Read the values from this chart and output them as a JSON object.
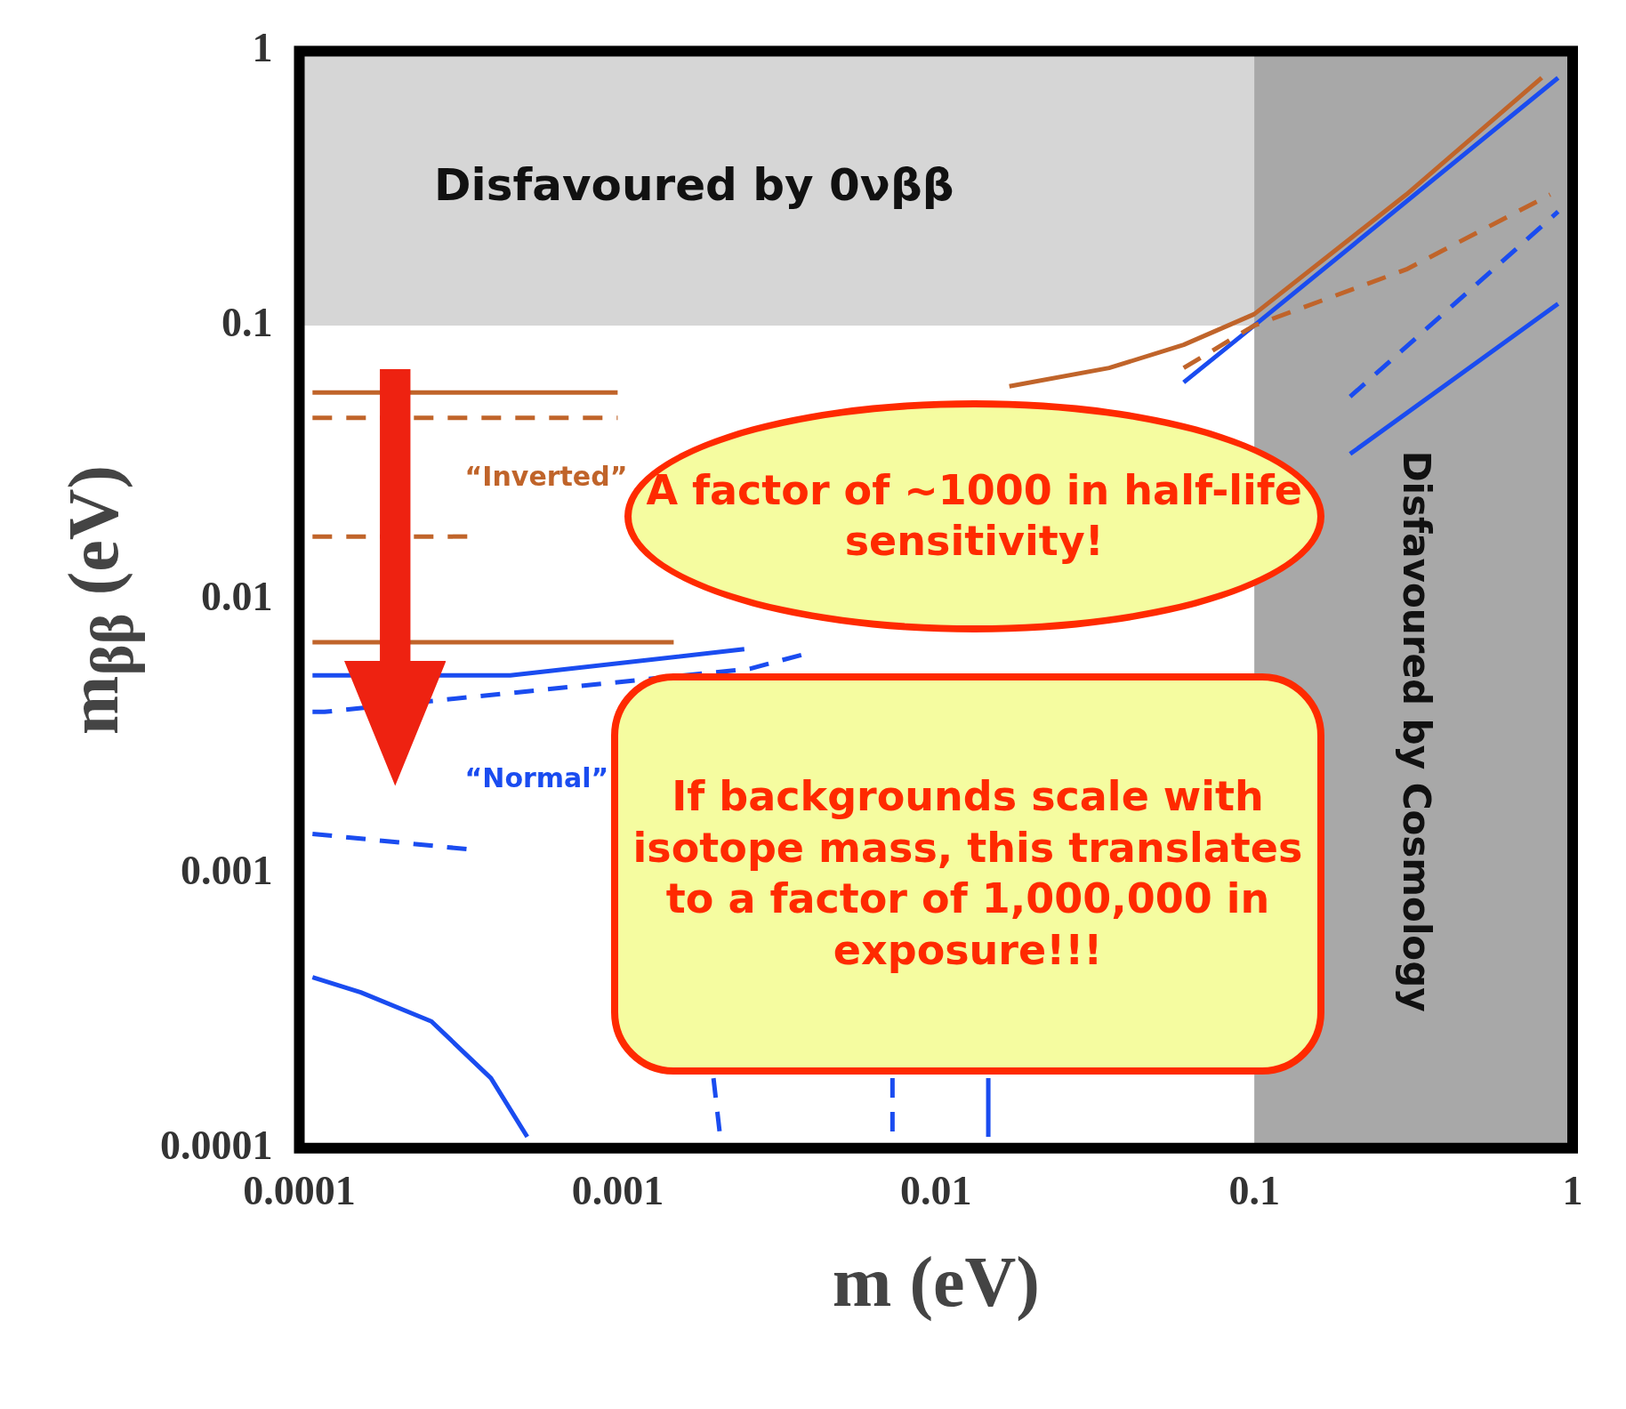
{
  "chart_data": {
    "type": "line",
    "xlabel": "m (eV)",
    "ylabel": "m$_{ββ}$ (eV)",
    "log": "xy",
    "grid": false,
    "legend": false,
    "xlim": [
      0.0001,
      1
    ],
    "ylim": [
      0.0001,
      1
    ],
    "xticks": [
      0.0001,
      0.001,
      0.01,
      0.1,
      1
    ],
    "yticks": [
      0.0001,
      0.001,
      0.01,
      0.1,
      1
    ],
    "series": [
      {
        "line_style": "solid",
        "color": "#c0642a",
        "x": [
          0.00011,
          0.001,
          0.005,
          0.017,
          0.035,
          0.06,
          0.1,
          0.3,
          0.8
        ],
        "values": [
          0.057,
          0.057,
          null,
          0.06,
          0.07,
          0.085,
          0.11,
          0.3,
          0.8
        ]
      },
      {
        "line_style": "dashed",
        "color": "#c0642a",
        "x": [
          0.00011,
          0.001,
          0.005,
          0.06,
          0.1,
          0.3,
          0.85
        ],
        "values": [
          0.046,
          0.046,
          null,
          0.07,
          0.1,
          0.16,
          0.3
        ]
      },
      {
        "line_style": "dashed",
        "color": "#c0642a",
        "x": [
          0.00011,
          0.00034
        ],
        "values": [
          0.017,
          0.017
        ]
      },
      {
        "line_style": "solid",
        "color": "#c0642a",
        "x": [
          0.00011,
          0.0015
        ],
        "values": [
          0.007,
          0.007
        ]
      },
      {
        "line_style": "solid",
        "color": "#1a4cf0",
        "x": [
          0.00011,
          0.00046,
          0.0025,
          0.01,
          0.06,
          0.1,
          0.9
        ],
        "values": [
          0.0053,
          0.0053,
          0.0066,
          null,
          0.062,
          0.1,
          0.8
        ]
      },
      {
        "line_style": "dashed",
        "color": "#1a4cf0",
        "x": [
          0.00011,
          0.00012,
          0.0026,
          0.004,
          0.02,
          0.2,
          0.9
        ],
        "values": [
          0.0039,
          0.0039,
          0.0056,
          0.0064,
          null,
          0.055,
          0.26
        ]
      },
      {
        "line_style": "solid",
        "color": "#1a4cf0",
        "x": [
          0.0146,
          0.0146,
          0.09,
          0.2,
          0.9
        ],
        "values": [
          0.00011,
          0.00018,
          null,
          0.034,
          0.12
        ]
      },
      {
        "line_style": "dashed",
        "color": "#1a4cf0",
        "x": [
          0.00011,
          0.00034,
          0.001,
          0.002,
          0.0021
        ],
        "values": [
          0.0014,
          0.00123,
          null,
          0.00018,
          0.00011
        ]
      },
      {
        "line_style": "dashed",
        "color": "#1a4cf0",
        "x": [
          0.0073,
          0.0073
        ],
        "values": [
          0.00018,
          0.00011
        ]
      },
      {
        "line_style": "solid",
        "color": "#1a4cf0",
        "x": [
          0.00011,
          0.000156,
          0.00026,
          0.0004,
          0.00052
        ],
        "values": [
          0.00042,
          0.00037,
          0.00029,
          0.00018,
          0.00011
        ]
      }
    ],
    "bands": [
      {
        "axis": "y",
        "from": 0.1,
        "to": 1,
        "label": "Disfavoured by 0νββ",
        "color": "#d6d6d6"
      },
      {
        "axis": "x",
        "from": 0.1,
        "to": 1,
        "label": "Disfavoured by Cosmology",
        "color": "#a8a8a8"
      }
    ],
    "annotations": [
      "“Inverted”",
      "“Normal”",
      "A factor of ~1000 in half-life sensitivity!",
      "If backgrounds scale with isotope mass, this translates to a factor of 1,000,000 in exposure!!!"
    ]
  }
}
